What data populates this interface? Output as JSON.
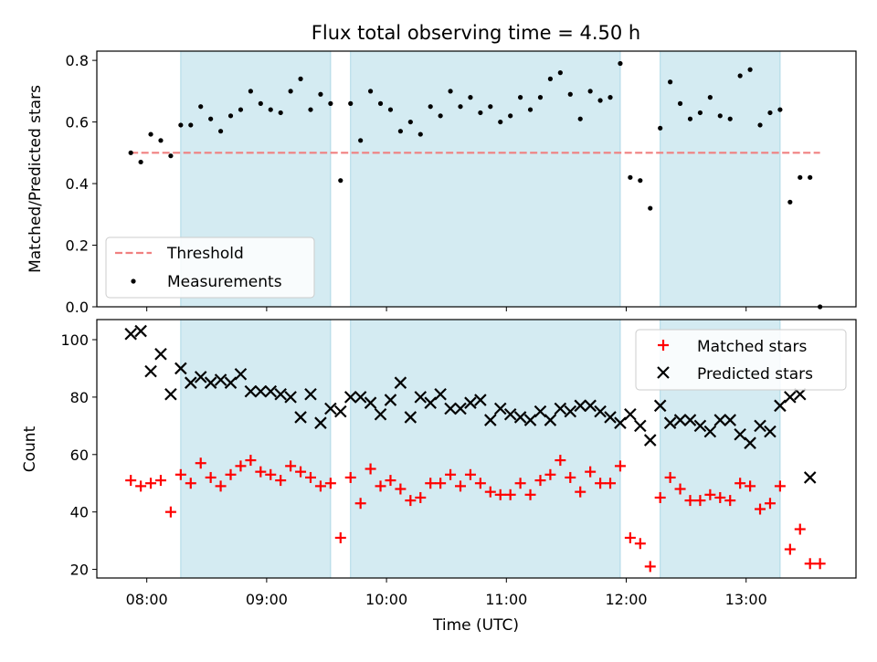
{
  "chart_data": [
    {
      "type": "scatter",
      "title": "Flux total observing time = 4.50 h",
      "ylabel": "Matched/Predicted stars",
      "xlabel": "",
      "xlim": [
        "07:35",
        "13:55"
      ],
      "ylim": [
        0.0,
        0.83
      ],
      "yticks": [
        "0.0",
        "0.2",
        "0.4",
        "0.6",
        "0.8"
      ],
      "grid": false,
      "legend": {
        "placement": "lower-left",
        "entries": [
          "Threshold",
          "Measurements"
        ]
      },
      "shaded_intervals": [
        [
          "08:17",
          "09:32"
        ],
        [
          "09:42",
          "11:57"
        ],
        [
          "12:17",
          "13:17"
        ]
      ],
      "threshold": {
        "name": "Threshold",
        "value": 0.5,
        "x_range": [
          "07:52",
          "13:37"
        ],
        "color": "#f08080"
      },
      "series": [
        {
          "name": "Measurements",
          "color": "#000000",
          "x": [
            "07:52",
            "07:57",
            "08:02",
            "08:07",
            "08:12",
            "08:17",
            "08:22",
            "08:27",
            "08:32",
            "08:37",
            "08:42",
            "08:47",
            "08:52",
            "08:57",
            "09:02",
            "09:07",
            "09:12",
            "09:17",
            "09:22",
            "09:27",
            "09:32",
            "09:37",
            "09:42",
            "09:47",
            "09:52",
            "09:57",
            "10:02",
            "10:07",
            "10:12",
            "10:17",
            "10:22",
            "10:27",
            "10:32",
            "10:37",
            "10:42",
            "10:47",
            "10:52",
            "10:57",
            "11:02",
            "11:07",
            "11:12",
            "11:17",
            "11:22",
            "11:27",
            "11:32",
            "11:37",
            "11:42",
            "11:47",
            "11:52",
            "11:57",
            "12:02",
            "12:07",
            "12:12",
            "12:17",
            "12:22",
            "12:27",
            "12:32",
            "12:37",
            "12:42",
            "12:47",
            "12:52",
            "12:57",
            "13:02",
            "13:07",
            "13:12",
            "13:17",
            "13:22",
            "13:27",
            "13:32",
            "13:37"
          ],
          "y": [
            0.5,
            0.47,
            0.56,
            0.54,
            0.49,
            0.59,
            0.59,
            0.65,
            0.61,
            0.57,
            0.62,
            0.64,
            0.7,
            0.66,
            0.64,
            0.63,
            0.7,
            0.74,
            0.64,
            0.69,
            0.66,
            0.41,
            0.66,
            0.54,
            0.7,
            0.66,
            0.64,
            0.57,
            0.6,
            0.56,
            0.65,
            0.62,
            0.7,
            0.65,
            0.68,
            0.63,
            0.65,
            0.6,
            0.62,
            0.68,
            0.64,
            0.68,
            0.74,
            0.76,
            0.69,
            0.61,
            0.7,
            0.67,
            0.68,
            0.79,
            0.42,
            0.41,
            0.32,
            0.58,
            0.73,
            0.66,
            0.61,
            0.63,
            0.68,
            0.62,
            0.61,
            0.75,
            0.77,
            0.59,
            0.63,
            0.64,
            0.34,
            0.42,
            0.42,
            0.0
          ]
        }
      ]
    },
    {
      "type": "scatter",
      "title": "",
      "ylabel": "Count",
      "xlabel": "Time (UTC)",
      "xlim": [
        "07:35",
        "13:55"
      ],
      "ylim": [
        17,
        107
      ],
      "xticks": [
        "08:00",
        "09:00",
        "10:00",
        "11:00",
        "12:00",
        "13:00"
      ],
      "yticks": [
        "20",
        "40",
        "60",
        "80",
        "100"
      ],
      "grid": false,
      "legend": {
        "placement": "upper-right",
        "entries": [
          "Matched stars",
          "Predicted stars"
        ]
      },
      "shaded_intervals": [
        [
          "08:17",
          "09:32"
        ],
        [
          "09:42",
          "11:57"
        ],
        [
          "12:17",
          "13:17"
        ]
      ],
      "series": [
        {
          "name": "Matched stars",
          "marker": "plus",
          "color": "#ff0000",
          "x": [
            "07:52",
            "07:57",
            "08:02",
            "08:07",
            "08:12",
            "08:17",
            "08:22",
            "08:27",
            "08:32",
            "08:37",
            "08:42",
            "08:47",
            "08:52",
            "08:57",
            "09:02",
            "09:07",
            "09:12",
            "09:17",
            "09:22",
            "09:27",
            "09:32",
            "09:37",
            "09:42",
            "09:47",
            "09:52",
            "09:57",
            "10:02",
            "10:07",
            "10:12",
            "10:17",
            "10:22",
            "10:27",
            "10:32",
            "10:37",
            "10:42",
            "10:47",
            "10:52",
            "10:57",
            "11:02",
            "11:07",
            "11:12",
            "11:17",
            "11:22",
            "11:27",
            "11:32",
            "11:37",
            "11:42",
            "11:47",
            "11:52",
            "11:57",
            "12:02",
            "12:07",
            "12:12",
            "12:17",
            "12:22",
            "12:27",
            "12:32",
            "12:37",
            "12:42",
            "12:47",
            "12:52",
            "12:57",
            "13:02",
            "13:07",
            "13:12",
            "13:17",
            "13:22",
            "13:27",
            "13:32",
            "13:37"
          ],
          "y": [
            51,
            49,
            50,
            51,
            40,
            53,
            50,
            57,
            52,
            49,
            53,
            56,
            58,
            54,
            53,
            51,
            56,
            54,
            52,
            49,
            50,
            31,
            52,
            43,
            55,
            49,
            51,
            48,
            44,
            45,
            50,
            50,
            53,
            49,
            53,
            50,
            47,
            46,
            46,
            50,
            46,
            51,
            53,
            58,
            52,
            47,
            54,
            50,
            50,
            56,
            31,
            29,
            21,
            45,
            52,
            48,
            44,
            44,
            46,
            45,
            44,
            50,
            49,
            41,
            43,
            49,
            27,
            34,
            22,
            22
          ]
        },
        {
          "name": "Predicted stars",
          "marker": "x",
          "color": "#000000",
          "x": [
            "07:52",
            "07:57",
            "08:02",
            "08:07",
            "08:12",
            "08:17",
            "08:22",
            "08:27",
            "08:32",
            "08:37",
            "08:42",
            "08:47",
            "08:52",
            "08:57",
            "09:02",
            "09:07",
            "09:12",
            "09:17",
            "09:22",
            "09:27",
            "09:32",
            "09:37",
            "09:42",
            "09:47",
            "09:52",
            "09:57",
            "10:02",
            "10:07",
            "10:12",
            "10:17",
            "10:22",
            "10:27",
            "10:32",
            "10:37",
            "10:42",
            "10:47",
            "10:52",
            "10:57",
            "11:02",
            "11:07",
            "11:12",
            "11:17",
            "11:22",
            "11:27",
            "11:32",
            "11:37",
            "11:42",
            "11:47",
            "11:52",
            "11:57",
            "12:02",
            "12:07",
            "12:12",
            "12:17",
            "12:22",
            "12:27",
            "12:32",
            "12:37",
            "12:42",
            "12:47",
            "12:52",
            "12:57",
            "13:02",
            "13:07",
            "13:12",
            "13:17",
            "13:22",
            "13:27",
            "13:32"
          ],
          "y": [
            102,
            103,
            89,
            95,
            81,
            90,
            85,
            87,
            85,
            86,
            85,
            88,
            82,
            82,
            82,
            81,
            80,
            73,
            81,
            71,
            76,
            75,
            80,
            80,
            78,
            74,
            79,
            85,
            73,
            80,
            78,
            81,
            76,
            76,
            78,
            79,
            72,
            76,
            74,
            73,
            72,
            75,
            72,
            76,
            75,
            77,
            77,
            75,
            73,
            71,
            74,
            70,
            65,
            77,
            71,
            72,
            72,
            70,
            68,
            72,
            72,
            67,
            64,
            70,
            68,
            77,
            80,
            81,
            52
          ]
        }
      ]
    }
  ]
}
